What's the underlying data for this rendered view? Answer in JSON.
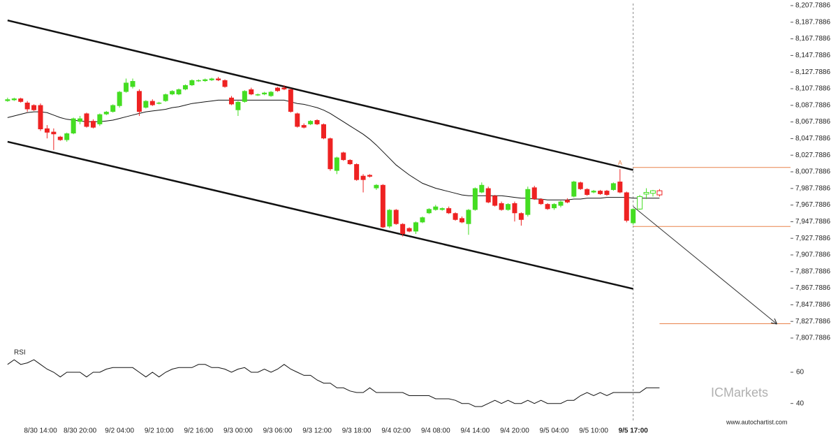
{
  "chart_data": {
    "type": "candlestick",
    "categories": [
      null,
      null,
      null,
      null,
      null,
      "8/30 14:00",
      null,
      null,
      null,
      null,
      null,
      "8/30 20:00",
      null,
      null,
      null,
      null,
      null,
      "9/2 04:00",
      null,
      null,
      null,
      null,
      null,
      "9/2 10:00",
      null,
      null,
      null,
      null,
      null,
      "9/2 16:00",
      null,
      null,
      null,
      null,
      null,
      "9/3 00:00",
      null,
      null,
      null,
      null,
      null,
      "9/3 06:00",
      null,
      null,
      null,
      null,
      null,
      "9/3 12:00",
      null,
      null,
      null,
      null,
      null,
      "9/3 18:00",
      null,
      null,
      null,
      null,
      null,
      "9/4 02:00",
      null,
      null,
      null,
      null,
      null,
      "9/4 08:00",
      null,
      null,
      null,
      null,
      null,
      "9/4 14:00",
      null,
      null,
      null,
      null,
      null,
      "9/4 20:00",
      null,
      null,
      null,
      null,
      null,
      "9/5 04:00",
      null,
      null,
      null,
      null,
      null,
      "9/5 10:00",
      null,
      null,
      null,
      null,
      null,
      "9/5 17:00",
      null,
      null,
      null,
      null
    ],
    "candles": [
      [
        8093,
        8097,
        8092,
        8095
      ],
      [
        8094,
        8097,
        8093,
        8096
      ],
      [
        8096,
        8097,
        8091,
        8092
      ],
      [
        8091,
        8093,
        8080,
        8083
      ],
      [
        8088,
        8089,
        8081,
        8082
      ],
      [
        8088,
        8090,
        8057,
        8059
      ],
      [
        8060,
        8064,
        8048,
        8055
      ],
      [
        8056,
        8060,
        8034,
        8053
      ],
      [
        8050,
        8051,
        8045,
        8046
      ],
      [
        8046,
        8055,
        8044,
        8054
      ],
      [
        8054,
        8073,
        8053,
        8072
      ],
      [
        8068,
        8075,
        8065,
        8072
      ],
      [
        8078,
        8079,
        8061,
        8062
      ],
      [
        8069,
        8071,
        8060,
        8061
      ],
      [
        8065,
        8078,
        8063,
        8077
      ],
      [
        8077,
        8081,
        8076,
        8080
      ],
      [
        8080,
        8089,
        8079,
        8088
      ],
      [
        8087,
        8105,
        8085,
        8104
      ],
      [
        8104,
        8120,
        8103,
        8115
      ],
      [
        8110,
        8120,
        8108,
        8117
      ],
      [
        8105,
        8107,
        8075,
        8080
      ],
      [
        8085,
        8094,
        8084,
        8093
      ],
      [
        8093,
        8095,
        8087,
        8088
      ],
      [
        8090,
        8092,
        8089,
        8091
      ],
      [
        8093,
        8102,
        8092,
        8101
      ],
      [
        8101,
        8106,
        8100,
        8105
      ],
      [
        8101,
        8108,
        8100,
        8107
      ],
      [
        8107,
        8113,
        8106,
        8112
      ],
      [
        8112,
        8119,
        8111,
        8118
      ],
      [
        8117,
        8119,
        8116,
        8118
      ],
      [
        8117,
        8120,
        8116,
        8119
      ],
      [
        8118,
        8121,
        8117,
        8120
      ],
      [
        8120,
        8122,
        8117,
        8118
      ],
      [
        8118,
        8119,
        8109,
        8110
      ],
      [
        8097,
        8099,
        8088,
        8089
      ],
      [
        8082,
        8093,
        8075,
        8092
      ],
      [
        8092,
        8106,
        8091,
        8105
      ],
      [
        8107,
        8109,
        8100,
        8101
      ],
      [
        8100,
        8102,
        8099,
        8101
      ],
      [
        8101,
        8104,
        8100,
        8103
      ],
      [
        8099,
        8105,
        8098,
        8104
      ],
      [
        8109,
        8110,
        8104,
        8105
      ],
      [
        8109,
        8112,
        8106,
        8107
      ],
      [
        8107,
        8108,
        8079,
        8080
      ],
      [
        8078,
        8079,
        8061,
        8062
      ],
      [
        8064,
        8066,
        8060,
        8061
      ],
      [
        8065,
        8070,
        8064,
        8069
      ],
      [
        8070,
        8071,
        8064,
        8065
      ],
      [
        8065,
        8066,
        8047,
        8048
      ],
      [
        8048,
        8049,
        8009,
        8011
      ],
      [
        8009,
        8026,
        8005,
        8025
      ],
      [
        8031,
        8032,
        8021,
        8022
      ],
      [
        8022,
        8023,
        8016,
        8017
      ],
      [
        8017,
        8018,
        7997,
        7998
      ],
      [
        8003,
        8005,
        7983,
        7998
      ],
      [
        8004,
        8005,
        8001,
        8002
      ],
      [
        7988,
        7993,
        7986,
        7992
      ],
      [
        7992,
        7993,
        7940,
        7941
      ],
      [
        7942,
        7963,
        7940,
        7962
      ],
      [
        7962,
        7963,
        7944,
        7945
      ],
      [
        7945,
        7946,
        7930,
        7933
      ],
      [
        7940,
        7941,
        7935,
        7936
      ],
      [
        7936,
        7948,
        7933,
        7947
      ],
      [
        7947,
        7954,
        7946,
        7953
      ],
      [
        7958,
        7964,
        7957,
        7963
      ],
      [
        7962,
        7968,
        7961,
        7966
      ],
      [
        7962,
        7965,
        7961,
        7964
      ],
      [
        7964,
        7966,
        7957,
        7958
      ],
      [
        7958,
        7959,
        7949,
        7950
      ],
      [
        7952,
        7954,
        7946,
        7947
      ],
      [
        7945,
        7963,
        7932,
        7962
      ],
      [
        7962,
        7989,
        7961,
        7988
      ],
      [
        7983,
        7995,
        7982,
        7992
      ],
      [
        7988,
        7990,
        7970,
        7971
      ],
      [
        7979,
        7980,
        7966,
        7967
      ],
      [
        7970,
        7972,
        7961,
        7962
      ],
      [
        7962,
        7970,
        7961,
        7969
      ],
      [
        7970,
        7972,
        7948,
        7958
      ],
      [
        7958,
        7959,
        7943,
        7950
      ],
      [
        7956,
        7990,
        7954,
        7987
      ],
      [
        7989,
        7991,
        7974,
        7975
      ],
      [
        7975,
        7976,
        7968,
        7969
      ],
      [
        7969,
        7970,
        7962,
        7963
      ],
      [
        7964,
        7970,
        7962,
        7969
      ],
      [
        7967,
        7973,
        7965,
        7972
      ],
      [
        7974,
        7976,
        7970,
        7971
      ],
      [
        7978,
        7997,
        7977,
        7996
      ],
      [
        7995,
        7996,
        7986,
        7987
      ],
      [
        7987,
        7988,
        7979,
        7980
      ],
      [
        7983,
        7986,
        7982,
        7985
      ],
      [
        7985,
        7986,
        7980,
        7981
      ],
      [
        7985,
        7986,
        7979,
        7980
      ],
      [
        7986,
        7995,
        7985,
        7994
      ],
      [
        7996,
        8011,
        7982,
        7983
      ],
      [
        7983,
        7984,
        7947,
        7949
      ],
      [
        7946,
        7964,
        7944,
        7963
      ],
      [
        7963,
        7980,
        7962,
        7978
      ],
      [
        7981,
        7988,
        7975,
        7983
      ],
      [
        7982,
        7986,
        7978,
        7985
      ],
      [
        7985,
        7987,
        7978,
        7980
      ]
    ],
    "up_color": "#44dd22",
    "down_color": "#ee2222",
    "moving_average": [
      8073,
      8075,
      8077,
      8079,
      8080,
      8080,
      8079,
      8076,
      8073,
      8071,
      8070,
      8069,
      8068,
      8068,
      8068,
      8069,
      8070,
      8072,
      8074,
      8076,
      8078,
      8080,
      8081,
      8082,
      8083,
      8085,
      8086,
      8088,
      8090,
      8091,
      8092,
      8093,
      8094,
      8094,
      8094,
      8094,
      8094,
      8094,
      8094,
      8094,
      8094,
      8094,
      8094,
      8092,
      8090,
      8089,
      8087,
      8085,
      8082,
      8078,
      8073,
      8068,
      8063,
      8058,
      8053,
      8047,
      8040,
      8032,
      8024,
      8016,
      8010,
      8004,
      7999,
      7994,
      7991,
      7988,
      7986,
      7984,
      7982,
      7980,
      7979,
      7979,
      7979,
      7979,
      7979,
      7979,
      7978,
      7977,
      7976,
      7976,
      7975,
      7975,
      7974,
      7974,
      7974,
      7974,
      7975,
      7975,
      7976,
      7976,
      7976,
      7977,
      7977,
      7977,
      7977,
      7976,
      7976,
      7976,
      7976,
      7976
    ],
    "channel": {
      "upper": [
        8190,
        8010
      ],
      "lower": [
        8044,
        7867
      ]
    },
    "levels": [
      8013,
      7942,
      7825
    ],
    "forecast": [
      7966,
      7825
    ],
    "annotation": "A",
    "ylim": [
      7807.7886,
      8207.7886
    ],
    "yticks": [
      {
        "value": 7807.7886,
        "label": "7,807.7886"
      },
      {
        "value": 7827.7886,
        "label": "7,827.7886"
      },
      {
        "value": 7847.7886,
        "label": "7,847.7886"
      },
      {
        "value": 7867.7886,
        "label": "7,867.7886"
      },
      {
        "value": 7887.7886,
        "label": "7,887.7886"
      },
      {
        "value": 7907.7886,
        "label": "7,907.7886"
      },
      {
        "value": 7927.7886,
        "label": "7,927.7886"
      },
      {
        "value": 7947.7886,
        "label": "7,947.7886"
      },
      {
        "value": 7967.7886,
        "label": "7,967.7886"
      },
      {
        "value": 7987.7886,
        "label": "7,987.7886"
      },
      {
        "value": 8007.7886,
        "label": "8,007.7886"
      },
      {
        "value": 8027.7886,
        "label": "8,027.7886"
      },
      {
        "value": 8047.7886,
        "label": "8,047.7886"
      },
      {
        "value": 8067.7886,
        "label": "8,067.7886"
      },
      {
        "value": 8087.7886,
        "label": "8,087.7886"
      },
      {
        "value": 8107.7886,
        "label": "8,107.7886"
      },
      {
        "value": 8127.7886,
        "label": "8,127.7886"
      },
      {
        "value": 8147.7886,
        "label": "8,147.7886"
      },
      {
        "value": 8167.7886,
        "label": "8,167.7886"
      },
      {
        "value": 8187.7886,
        "label": "8,187.7886"
      },
      {
        "value": 8207.7886,
        "label": "8,207.7886"
      }
    ],
    "rsi": {
      "label": "RSI",
      "values": [
        65,
        68,
        65,
        66,
        68,
        65,
        62,
        60,
        57,
        60,
        60,
        60,
        57,
        60,
        60,
        62,
        63,
        63,
        63,
        63,
        60,
        57,
        60,
        57,
        60,
        62,
        63,
        63,
        63,
        65,
        65,
        63,
        63,
        62,
        60,
        62,
        63,
        60,
        60,
        62,
        60,
        62,
        65,
        62,
        60,
        58,
        58,
        55,
        53,
        53,
        50,
        50,
        48,
        47,
        47,
        50,
        47,
        47,
        47,
        47,
        47,
        45,
        45,
        45,
        45,
        43,
        43,
        43,
        42,
        40,
        40,
        38,
        38,
        40,
        42,
        40,
        42,
        40,
        40,
        42,
        40,
        42,
        40,
        40,
        40,
        42,
        42,
        45,
        47,
        45,
        47,
        45,
        47,
        47,
        47,
        47,
        47,
        50,
        50,
        50
      ],
      "ylim": [
        30,
        77
      ],
      "yticks": [
        40,
        60
      ]
    },
    "brand": "ICMarkets",
    "source": "www.autochartist.com"
  }
}
